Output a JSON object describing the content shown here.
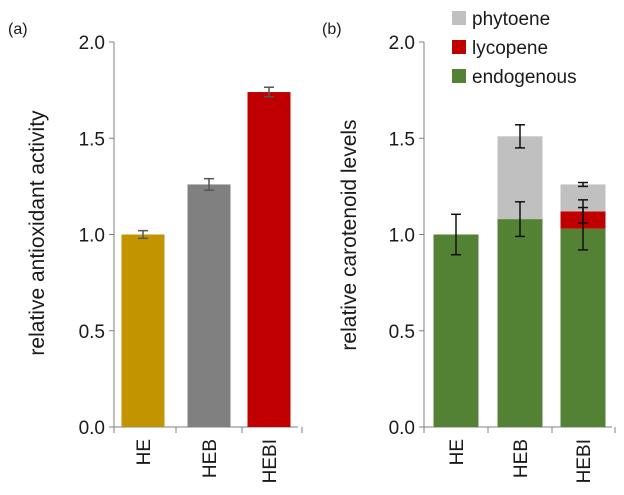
{
  "chart_data": [
    {
      "type": "bar",
      "panel_label": "(a)",
      "ylabel": "relative antioxidant activity",
      "ylim": [
        0,
        2.0
      ],
      "yticks": [
        "0.0",
        "0.5",
        "1.0",
        "1.5",
        "2.0"
      ],
      "categories": [
        "HE",
        "HEB",
        "HEBI"
      ],
      "values": [
        1.0,
        1.26,
        1.74
      ],
      "errors": [
        0.02,
        0.03,
        0.025
      ],
      "colors": [
        "#c29500",
        "#808080",
        "#c00000"
      ],
      "grid": false
    },
    {
      "type": "bar",
      "stacked": true,
      "panel_label": "(b)",
      "ylabel": "relative carotenoid levels",
      "ylim": [
        0,
        2.0
      ],
      "yticks": [
        "0.0",
        "0.5",
        "1.0",
        "1.5",
        "2.0"
      ],
      "categories": [
        "HE",
        "HEB",
        "HEBI"
      ],
      "legend_position": "top-right",
      "series": [
        {
          "name": "endogenous",
          "color": "#548235",
          "values": [
            1.0,
            1.08,
            1.03
          ],
          "errors": [
            0.105,
            0.09,
            0.11
          ]
        },
        {
          "name": "lycopene",
          "color": "#c00000",
          "values": [
            0,
            0,
            0.09
          ],
          "errors": [
            0,
            0,
            0.06
          ]
        },
        {
          "name": "phytoene",
          "color": "#c0c0c0",
          "values": [
            0,
            0.43,
            0.14
          ],
          "errors": [
            0,
            0.06,
            0.01
          ]
        }
      ],
      "grid": false
    }
  ]
}
